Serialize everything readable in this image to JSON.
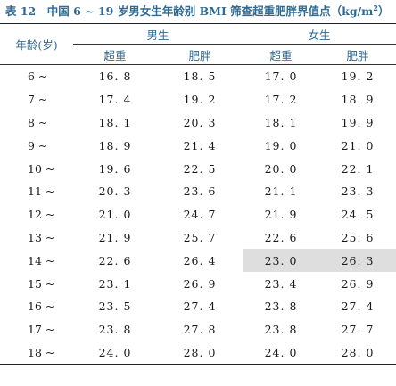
{
  "caption": {
    "text": "表 12　中国 6 ~ 19 岁男女生年龄别 BMI 筛查超重肥胖界值点（kg/m",
    "sup": "2",
    "close": "）"
  },
  "table": {
    "age_header": "年龄(岁)",
    "groups": [
      "男生",
      "女生"
    ],
    "subheaders": [
      "超重",
      "肥胖",
      "超重",
      "肥胖"
    ],
    "rows": [
      {
        "age": "6 ~",
        "m_over": "16. 8",
        "m_obese": "18. 5",
        "f_over": "17. 0",
        "f_obese": "19. 2"
      },
      {
        "age": "7 ~",
        "m_over": "17. 4",
        "m_obese": "19. 2",
        "f_over": "17. 2",
        "f_obese": "18. 9"
      },
      {
        "age": "8 ~",
        "m_over": "18. 1",
        "m_obese": "20. 3",
        "f_over": "18. 1",
        "f_obese": "19. 9"
      },
      {
        "age": "9 ~",
        "m_over": "18. 9",
        "m_obese": "21. 4",
        "f_over": "19. 0",
        "f_obese": "21. 0"
      },
      {
        "age": "10 ~",
        "m_over": "19. 6",
        "m_obese": "22. 5",
        "f_over": "20. 0",
        "f_obese": "22. 1"
      },
      {
        "age": "11 ~",
        "m_over": "20. 3",
        "m_obese": "23. 6",
        "f_over": "21. 1",
        "f_obese": "23. 3"
      },
      {
        "age": "12 ~",
        "m_over": "21. 0",
        "m_obese": "24. 7",
        "f_over": "21. 9",
        "f_obese": "24. 5"
      },
      {
        "age": "13 ~",
        "m_over": "21. 9",
        "m_obese": "25. 7",
        "f_over": "22. 6",
        "f_obese": "25. 6"
      },
      {
        "age": "14 ~",
        "m_over": "22. 6",
        "m_obese": "26. 4",
        "f_over": "23. 0",
        "f_obese": "26. 3"
      },
      {
        "age": "15 ~",
        "m_over": "23. 1",
        "m_obese": "26. 9",
        "f_over": "23. 4",
        "f_obese": "26. 9"
      },
      {
        "age": "16 ~",
        "m_over": "23. 5",
        "m_obese": "27. 4",
        "f_over": "23. 8",
        "f_obese": "27. 4"
      },
      {
        "age": "17 ~",
        "m_over": "23. 8",
        "m_obese": "27. 8",
        "f_over": "23. 8",
        "f_obese": "27. 7"
      },
      {
        "age": "18 ~",
        "m_over": "24. 0",
        "m_obese": "28. 0",
        "f_over": "24. 0",
        "f_obese": "28. 0"
      }
    ]
  }
}
